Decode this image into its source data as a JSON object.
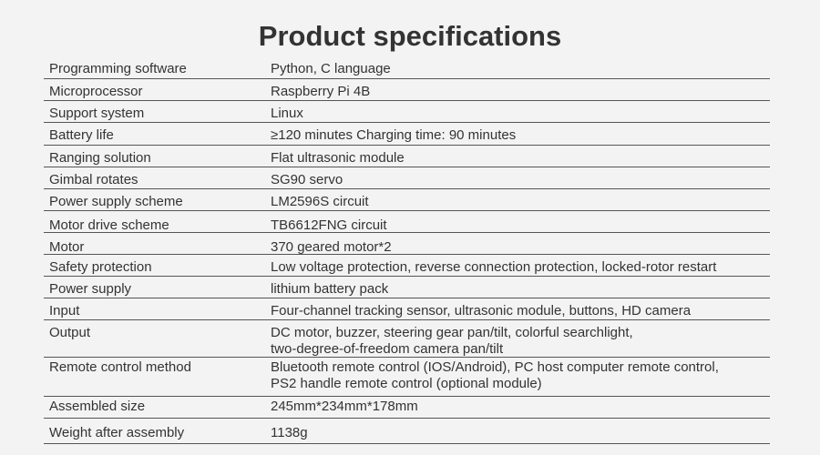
{
  "title": "Product specifications",
  "rows": [
    {
      "label": "Programming software",
      "value": [
        "Python, C language"
      ]
    },
    {
      "label": "Microprocessor",
      "value": [
        "Raspberry Pi 4B"
      ]
    },
    {
      "label": "Support system",
      "value": [
        "Linux"
      ]
    },
    {
      "label": "Battery life",
      "value": [
        "≥120 minutes  Charging time: 90 minutes"
      ]
    },
    {
      "label": "Ranging solution",
      "value": [
        "Flat ultrasonic module"
      ]
    },
    {
      "label": "Gimbal rotates",
      "value": [
        "SG90 servo"
      ]
    },
    {
      "label": "Power supply scheme",
      "value": [
        "LM2596S circuit"
      ]
    },
    {
      "label": "Motor drive scheme",
      "value": [
        "TB6612FNG circuit"
      ]
    },
    {
      "label": "Motor",
      "value": [
        "370 geared motor*2"
      ]
    },
    {
      "label": "Safety protection",
      "value": [
        "Low voltage protection, reverse connection protection, locked-rotor restart"
      ]
    },
    {
      "label": "Power supply",
      "value": [
        "lithium battery pack"
      ]
    },
    {
      "label": "Input",
      "value": [
        "Four-channel tracking sensor, ultrasonic module, buttons, HD camera"
      ]
    },
    {
      "label": "Output",
      "value": [
        "DC motor, buzzer, steering gear pan/tilt, colorful searchlight,",
        "two-degree-of-freedom camera pan/tilt"
      ]
    },
    {
      "label": "Remote control method",
      "value": [
        "Bluetooth remote control (IOS/Android), PC host computer remote control,",
        "PS2 handle remote control (optional module)"
      ]
    },
    {
      "label": "Assembled size",
      "value": [
        "245mm*234mm*178mm"
      ]
    },
    {
      "label": "Weight after assembly",
      "value": [
        "1138g"
      ]
    }
  ]
}
